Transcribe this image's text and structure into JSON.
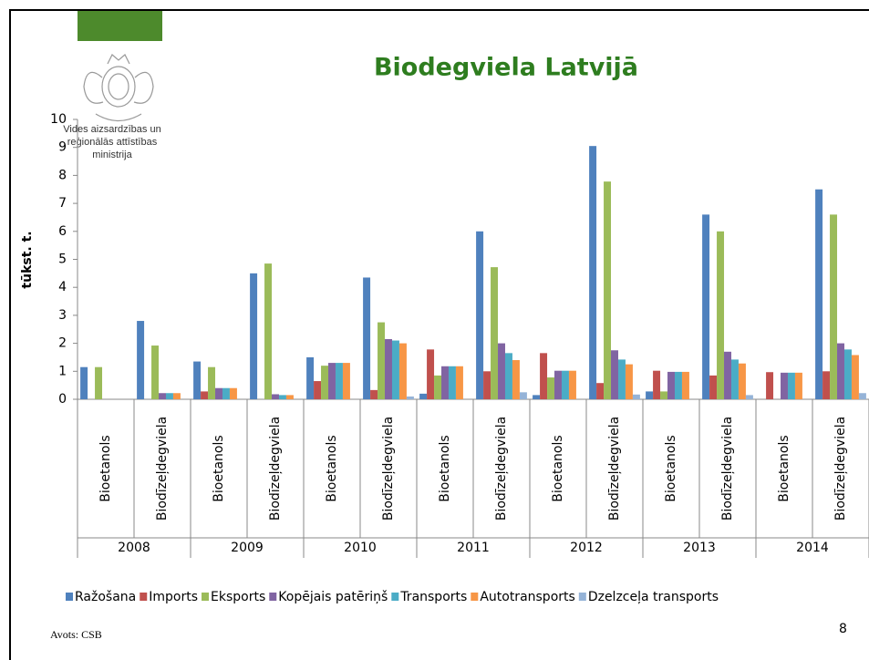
{
  "logo": [
    "Vides aizsardzības un",
    "reģionālās attīstības",
    "ministrija"
  ],
  "source": "Avots: CSB",
  "page_number": 8,
  "chart_data": {
    "type": "bar",
    "title": "Biodegviela Latvijā",
    "y_label": "tūkst. t.",
    "groups": [
      "2008",
      "2009",
      "2010",
      "2011",
      "2012",
      "2013",
      "2014"
    ],
    "categories": [
      "Bioetanols",
      "Biodīzeļdegviela",
      "Bioetanols",
      "Biodīzeļdegviela",
      "Bioetanols",
      "Biodīzeļdegviela",
      "Bioetanols",
      "Biodīzeļdegviela",
      "Bioetanols",
      "Biodīzeļdegviela",
      "Bioetanols",
      "Biodīzeļdegviela",
      "Bioetanols",
      "Biodīzeļdegviela"
    ],
    "series": [
      {
        "name": "Ražošana",
        "color": "#4f81bd",
        "values": [
          1.15,
          2.8,
          1.35,
          4.5,
          1.5,
          4.35,
          0.2,
          6.0,
          0.15,
          9.05,
          0.28,
          6.6,
          0,
          7.5
        ]
      },
      {
        "name": "Imports",
        "color": "#c0504d",
        "values": [
          0,
          0,
          0.28,
          0,
          0.65,
          0.33,
          1.78,
          1.0,
          1.65,
          0.58,
          1.02,
          0.85,
          0.97,
          1.0
        ]
      },
      {
        "name": "Eksports",
        "color": "#9bbb59",
        "values": [
          1.15,
          1.92,
          1.15,
          4.85,
          1.2,
          2.75,
          0.85,
          4.72,
          0.78,
          7.78,
          0.28,
          6.0,
          0,
          6.6
        ]
      },
      {
        "name": "Kopējais patēriņš",
        "color": "#8064a2",
        "values": [
          0,
          0.22,
          0.4,
          0.18,
          1.3,
          2.15,
          1.18,
          2.0,
          1.02,
          1.75,
          0.98,
          1.7,
          0.95,
          2.0
        ]
      },
      {
        "name": "Transports",
        "color": "#4bacc6",
        "values": [
          0,
          0.22,
          0.4,
          0.15,
          1.3,
          2.1,
          1.18,
          1.65,
          1.02,
          1.42,
          0.98,
          1.42,
          0.95,
          1.78
        ]
      },
      {
        "name": "Autotransports",
        "color": "#f79646",
        "values": [
          0,
          0.22,
          0.4,
          0.15,
          1.3,
          2.0,
          1.18,
          1.4,
          1.02,
          1.25,
          0.98,
          1.28,
          0.95,
          1.58
        ]
      },
      {
        "name": "Dzelzceļa transports",
        "color": "#95b3d7",
        "values": [
          0,
          0,
          0,
          0,
          0,
          0.1,
          0,
          0.25,
          0,
          0.17,
          0,
          0.15,
          0,
          0.22
        ]
      }
    ],
    "ylim": [
      0,
      10
    ],
    "yticks": [
      0,
      1,
      2,
      3,
      4,
      5,
      6,
      7,
      8,
      9,
      10
    ],
    "grid": false,
    "legend": "bottom"
  }
}
